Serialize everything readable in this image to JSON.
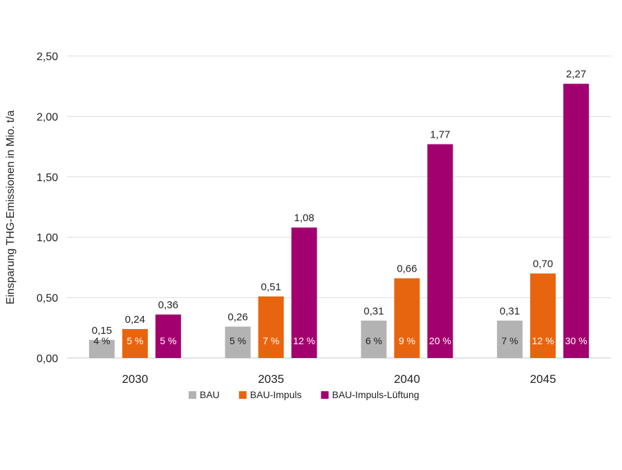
{
  "chart_data": {
    "type": "bar",
    "title": "",
    "xlabel": "",
    "ylabel": "Einsparung THG-Emissionen in Mio. t/a",
    "ylim": [
      0,
      2.5
    ],
    "yticks": [
      "0,00",
      "0,50",
      "1,00",
      "1,50",
      "2,00",
      "2,50"
    ],
    "ytick_values": [
      0,
      0.5,
      1.0,
      1.5,
      2.0,
      2.5
    ],
    "grid": true,
    "legend_position": "bottom",
    "categories": [
      "2030",
      "2035",
      "2040",
      "2045"
    ],
    "series": [
      {
        "name": "BAU",
        "color": "#b3b3b3",
        "values": [
          0.15,
          0.26,
          0.31,
          0.31
        ],
        "value_labels": [
          "0,15",
          "0,26",
          "0,31",
          "0,31"
        ],
        "percent_labels": [
          "4 %",
          "5 %",
          "6 %",
          "7 %"
        ],
        "percent_label_color": "#222222"
      },
      {
        "name": "BAU-Impuls",
        "color": "#e8650f",
        "values": [
          0.24,
          0.51,
          0.66,
          0.7
        ],
        "value_labels": [
          "0,24",
          "0,51",
          "0,66",
          "0,70"
        ],
        "percent_labels": [
          "5 %",
          "7 %",
          "9 %",
          "12 %"
        ],
        "percent_label_color": "#ffffff"
      },
      {
        "name": "BAU-Impuls-Lüftung",
        "color": "#a3006f",
        "values": [
          0.36,
          1.08,
          1.77,
          2.27
        ],
        "value_labels": [
          "0,36",
          "1,08",
          "1,77",
          "2,27"
        ],
        "percent_labels": [
          "5 %",
          "12 %",
          "20 %",
          "30 %"
        ],
        "percent_label_color": "#ffffff"
      }
    ]
  }
}
